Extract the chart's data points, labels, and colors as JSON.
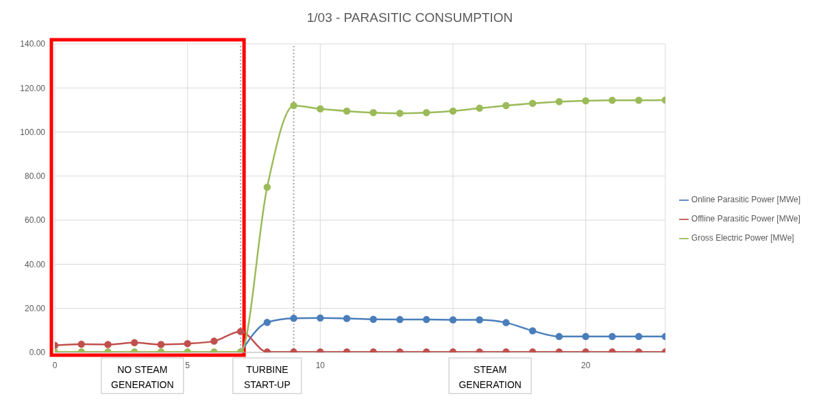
{
  "chart_data": {
    "type": "line",
    "title": "1/03 - PARASITIC CONSUMPTION",
    "x": [
      0,
      1,
      2,
      3,
      4,
      5,
      6,
      7,
      8,
      9,
      10,
      11,
      12,
      13,
      14,
      15,
      16,
      17,
      18,
      19,
      20,
      21,
      22,
      23
    ],
    "series": [
      {
        "name": "Online Parasitic Power [MWe]",
        "color": "#4a7ebb",
        "values": [
          null,
          null,
          null,
          null,
          null,
          null,
          null,
          0,
          13.6,
          15.5,
          15.6,
          15.4,
          15.0,
          14.9,
          14.9,
          14.8,
          14.8,
          13.5,
          9.8,
          7.2,
          7.2,
          7.2,
          7.2,
          7.2
        ]
      },
      {
        "name": "Offline Parasitic Power [MWe]",
        "color": "#c0504d",
        "values": [
          3.2,
          3.7,
          3.6,
          4.4,
          3.6,
          4.0,
          5.1,
          9.5,
          0.2,
          0.2,
          0.2,
          0.2,
          0.2,
          0.2,
          0.2,
          0.2,
          0.2,
          0.2,
          0.2,
          0.2,
          0.2,
          0.2,
          0.2,
          0.2
        ]
      },
      {
        "name": "Gross Electric Power [MWe]",
        "color": "#9bbb59",
        "values": [
          0.2,
          0.2,
          0.2,
          0.2,
          0.2,
          0.2,
          0.2,
          0.2,
          75,
          112,
          110.5,
          109.5,
          108.8,
          108.5,
          108.8,
          109.5,
          110.8,
          112,
          113,
          113.8,
          114.2,
          114.4,
          114.4,
          114.5
        ]
      }
    ],
    "xlim": [
      0,
      23
    ],
    "xticks": [
      0,
      5,
      10,
      {
        "value": 15,
        "label": null
      },
      20
    ],
    "ylim": [
      0,
      140
    ],
    "yticks": [
      {
        "value": 0,
        "label": "0.00"
      },
      {
        "value": 20,
        "label": "20.00"
      },
      {
        "value": 40,
        "label": "40.00"
      },
      {
        "value": 60,
        "label": "60.00"
      },
      {
        "value": 80,
        "label": "80.00"
      },
      {
        "value": 100,
        "label": "100.00"
      },
      {
        "value": 120,
        "label": "120.00"
      },
      {
        "value": 140,
        "label": "140.00"
      }
    ],
    "ref_lines": [
      {
        "axis": "x",
        "value": 7,
        "color": "#a6a6a6",
        "line_style": "dotted"
      },
      {
        "axis": "x",
        "value": 9,
        "color": "#a6a6a6",
        "line_style": "dotted"
      }
    ],
    "annotations": [
      "NO STEAM GENERATION",
      "TURBINE START-UP",
      "STEAM GENERATION"
    ],
    "grid": true,
    "legend": "right",
    "marker": "circle",
    "line_style": "solid"
  }
}
